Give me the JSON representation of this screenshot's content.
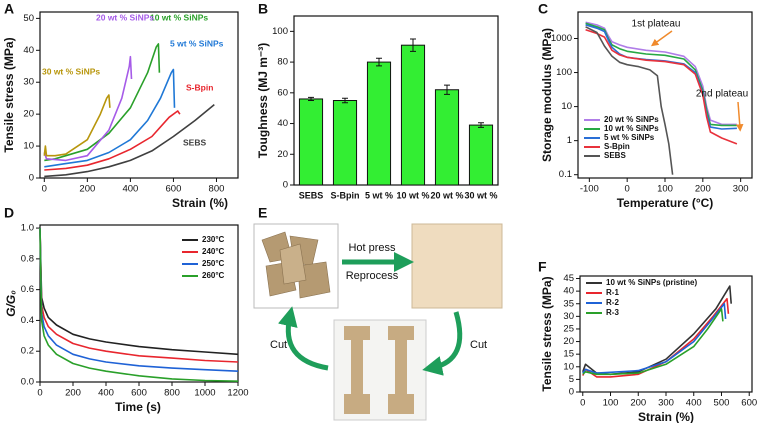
{
  "chart_data": [
    {
      "type": "line",
      "panel_label": "A",
      "x_label": "Strain (%)",
      "y_label": "Tensile stress (MPa)",
      "xlim": [
        -20,
        900
      ],
      "xticks": [
        0,
        200,
        400,
        600,
        800
      ],
      "ylim": [
        0,
        52
      ],
      "yticks": [
        0,
        10,
        20,
        30,
        40,
        50
      ],
      "series": [
        {
          "name": "SEBS",
          "color": "#404040",
          "x": [
            0,
            100,
            200,
            300,
            400,
            500,
            600,
            700,
            790
          ],
          "values": [
            0.5,
            1,
            2,
            3.5,
            5.5,
            8.5,
            13,
            18,
            23
          ]
        },
        {
          "name": "S-Bpin",
          "color": "#e8262e",
          "x": [
            0,
            100,
            200,
            300,
            400,
            500,
            580,
            620,
            630
          ],
          "values": [
            2.5,
            3,
            4,
            6,
            9,
            13,
            19,
            21,
            20
          ]
        },
        {
          "name": "5 wt % SiNPs",
          "color": "#1f78d6",
          "x": [
            0,
            100,
            200,
            300,
            400,
            480,
            540,
            590,
            600,
            605
          ],
          "values": [
            3.5,
            4.5,
            5.5,
            8,
            12,
            18,
            25,
            33,
            34,
            22
          ]
        },
        {
          "name": "10 wt % SiNPs",
          "color": "#2aa02a",
          "x": [
            0,
            50,
            100,
            200,
            300,
            400,
            480,
            520,
            530,
            535
          ],
          "values": [
            5.5,
            6,
            7,
            9,
            14,
            22,
            33,
            41,
            42,
            33
          ]
        },
        {
          "name": "20 wt % SiNPs",
          "color": "#a65be8",
          "x": [
            0,
            10,
            100,
            200,
            300,
            360,
            395,
            400,
            405
          ],
          "values": [
            8,
            6,
            5.5,
            7,
            15,
            25,
            35,
            38,
            31
          ]
        },
        {
          "name": "30 wt % SiNPs",
          "color": "#b8960c",
          "x": [
            0,
            5,
            10,
            50,
            100,
            200,
            260,
            290,
            300,
            305
          ],
          "values": [
            7,
            10,
            7,
            7,
            7.5,
            12,
            20,
            25,
            26,
            22
          ]
        }
      ]
    },
    {
      "type": "bar",
      "panel_label": "B",
      "y_label": "Toughness (MJ m⁻³)",
      "color": "#33ee33",
      "categories": [
        "SEBS",
        "S-Bpin",
        "5 wt %",
        "10 wt %",
        "20 wt %",
        "30 wt %"
      ],
      "values": [
        56,
        55,
        80,
        91,
        62,
        39
      ],
      "errors": [
        1,
        1.5,
        2.5,
        4,
        3,
        1.5
      ],
      "ylim": [
        0,
        110
      ],
      "yticks": [
        0,
        20,
        40,
        60,
        80,
        100
      ]
    },
    {
      "type": "line",
      "panel_label": "C",
      "x_label": "Temperature (°C)",
      "y_label": "Storage modulus (MPa)",
      "log_y": true,
      "xlim": [
        -130,
        330
      ],
      "xticks": [
        -100,
        0,
        100,
        200,
        300
      ],
      "ylim": [
        0.08,
        6000
      ],
      "yticks": [
        0.1,
        1,
        10,
        100,
        1000
      ],
      "annotations": [
        "1st plateau",
        "2nd plateau"
      ],
      "series": [
        {
          "name": "20 wt % SiNPs",
          "color": "#b07de8",
          "x": [
            -110,
            -80,
            -60,
            -50,
            -40,
            -20,
            0,
            50,
            100,
            150,
            180,
            200,
            210,
            220,
            250,
            290
          ],
          "values": [
            3000,
            2500,
            2000,
            1200,
            800,
            650,
            550,
            450,
            400,
            300,
            150,
            40,
            10,
            4,
            3,
            3
          ]
        },
        {
          "name": "10 wt % SiNPs",
          "color": "#27a844",
          "x": [
            -110,
            -80,
            -60,
            -50,
            -40,
            -20,
            0,
            50,
            100,
            150,
            180,
            200,
            210,
            220,
            250,
            290
          ],
          "values": [
            2800,
            2200,
            1800,
            1000,
            650,
            500,
            420,
            350,
            320,
            250,
            120,
            30,
            8,
            3,
            2.8,
            2.8
          ]
        },
        {
          "name": "5 wt % SiNPs",
          "color": "#2a6fd6",
          "x": [
            -110,
            -80,
            -60,
            -50,
            -40,
            -20,
            0,
            50,
            100,
            150,
            180,
            200,
            210,
            220,
            250,
            290
          ],
          "values": [
            2500,
            2000,
            1600,
            900,
            550,
            350,
            280,
            240,
            220,
            180,
            100,
            25,
            6,
            2.5,
            2.2,
            2.3
          ]
        },
        {
          "name": "S-Bpin",
          "color": "#e8323c",
          "x": [
            -110,
            -80,
            -60,
            -50,
            -40,
            -20,
            0,
            50,
            100,
            150,
            180,
            200,
            210,
            220,
            250,
            290
          ],
          "values": [
            1800,
            1400,
            1100,
            700,
            450,
            330,
            280,
            230,
            210,
            170,
            90,
            22,
            5,
            1.8,
            1.2,
            0.8
          ]
        },
        {
          "name": "SEBS",
          "color": "#555555",
          "x": [
            -110,
            -80,
            -60,
            -40,
            -20,
            0,
            30,
            60,
            80,
            90,
            100,
            110,
            120
          ],
          "values": [
            2200,
            1500,
            600,
            300,
            200,
            170,
            150,
            120,
            80,
            10,
            3,
            0.8,
            0.1
          ]
        }
      ]
    },
    {
      "type": "line",
      "panel_label": "D",
      "x_label": "Time (s)",
      "y_label": "G/G₀",
      "xlim": [
        0,
        1200
      ],
      "xticks": [
        0,
        200,
        400,
        600,
        800,
        1000,
        1200
      ],
      "ylim": [
        0,
        1.02
      ],
      "yticks": [
        {
          "value": 0,
          "label": "0.0"
        },
        0.2,
        0.4,
        0.6,
        0.8,
        {
          "value": 1,
          "label": "1.0"
        }
      ],
      "x": [
        0,
        10,
        25,
        50,
        100,
        200,
        300,
        400,
        600,
        800,
        1000,
        1200
      ],
      "series": [
        {
          "name": "230°C",
          "color": "#222222",
          "values": [
            1,
            0.55,
            0.48,
            0.42,
            0.37,
            0.31,
            0.28,
            0.26,
            0.23,
            0.21,
            0.195,
            0.18
          ]
        },
        {
          "name": "240°C",
          "color": "#e8262e",
          "values": [
            1,
            0.5,
            0.42,
            0.36,
            0.31,
            0.25,
            0.22,
            0.2,
            0.17,
            0.155,
            0.14,
            0.13
          ]
        },
        {
          "name": "250°C",
          "color": "#1f62d6",
          "values": [
            1,
            0.45,
            0.36,
            0.3,
            0.24,
            0.18,
            0.15,
            0.13,
            0.105,
            0.09,
            0.08,
            0.07
          ]
        },
        {
          "name": "260°C",
          "color": "#2aa02a",
          "values": [
            1,
            0.4,
            0.3,
            0.24,
            0.18,
            0.12,
            0.09,
            0.07,
            0.04,
            0.02,
            0.01,
            0.005
          ]
        }
      ]
    },
    {
      "type": "line",
      "panel_label": "F",
      "x_label": "Strain (%)",
      "y_label": "Tensile stress (MPa)",
      "xlim": [
        -10,
        610
      ],
      "xticks": [
        0,
        100,
        200,
        300,
        400,
        500,
        600
      ],
      "ylim": [
        0,
        46
      ],
      "yticks": [
        0,
        5,
        10,
        15,
        20,
        25,
        30,
        35,
        40,
        45
      ],
      "series": [
        {
          "name": "10 wt % SiNPs (pristine)",
          "color": "#333333",
          "x": [
            0,
            10,
            50,
            100,
            200,
            300,
            400,
            480,
            530,
            535
          ],
          "values": [
            8,
            11,
            7.5,
            7,
            8,
            13,
            23,
            33,
            42,
            35
          ]
        },
        {
          "name": "R-1",
          "color": "#e8262e",
          "x": [
            0,
            10,
            50,
            100,
            200,
            300,
            400,
            470,
            520,
            525
          ],
          "values": [
            6.5,
            9,
            6,
            6,
            7,
            12,
            21,
            30,
            37,
            31
          ]
        },
        {
          "name": "R-2",
          "color": "#1f62d6",
          "x": [
            0,
            10,
            50,
            100,
            200,
            300,
            400,
            460,
            510,
            515
          ],
          "values": [
            7.5,
            9,
            7.5,
            7.8,
            8.5,
            12,
            20,
            28,
            35,
            29
          ]
        },
        {
          "name": "R-3",
          "color": "#2aa02a",
          "x": [
            0,
            10,
            50,
            100,
            200,
            300,
            400,
            450,
            500,
            505
          ],
          "values": [
            7,
            8,
            7,
            7,
            7.5,
            11,
            18,
            25,
            33,
            28
          ]
        }
      ]
    }
  ],
  "diagram": {
    "panel_label": "E",
    "arrow_labels": [
      "Hot press",
      "Reprocess"
    ],
    "cut_labels": [
      "Cut",
      "Cut"
    ]
  }
}
